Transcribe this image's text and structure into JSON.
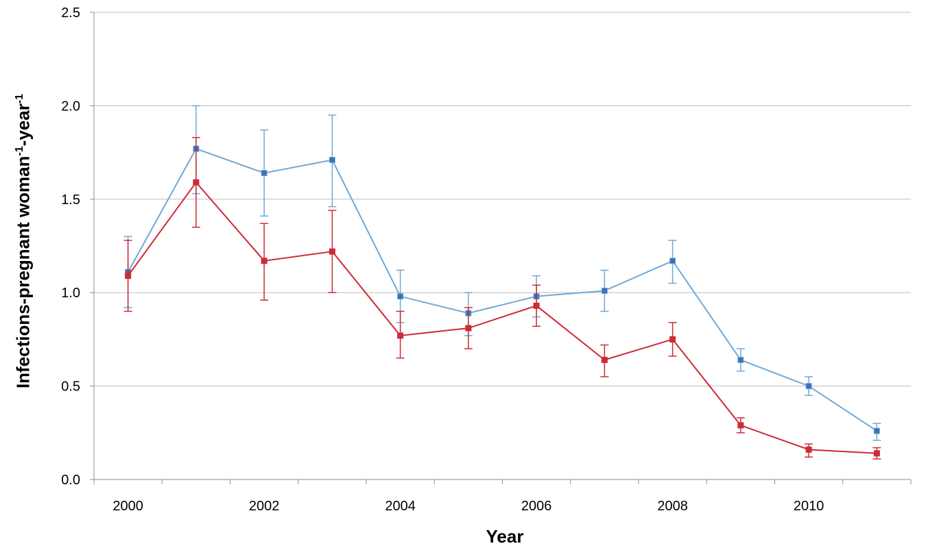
{
  "chart_data": {
    "type": "line",
    "xlabel": "Year",
    "ylabel_parts": {
      "base": "Infections-pregnant woman",
      "sup1": "-1",
      "mid": "-year",
      "sup2": "-1"
    },
    "x": [
      2000,
      2001,
      2002,
      2003,
      2004,
      2005,
      2006,
      2007,
      2008,
      2009,
      2010,
      2011
    ],
    "x_tick_labels": [
      "2000",
      "2002",
      "2004",
      "2006",
      "2008",
      "2010"
    ],
    "y_tick_labels": [
      "0.0",
      "0.5",
      "1.0",
      "1.5",
      "2.0",
      "2.5"
    ],
    "ylim": [
      0,
      2.5
    ],
    "grid": "horizontal",
    "series": [
      {
        "color": "#6fa8d6",
        "marker_fill": "#3d6fb6",
        "values": [
          1.11,
          1.77,
          1.64,
          1.71,
          0.98,
          0.89,
          0.98,
          1.01,
          1.17,
          0.64,
          0.5,
          0.26
        ],
        "err_low": [
          0.92,
          1.53,
          1.41,
          1.46,
          0.84,
          0.77,
          0.87,
          0.9,
          1.05,
          0.58,
          0.45,
          0.21
        ],
        "err_high": [
          1.3,
          2.0,
          1.87,
          1.95,
          1.12,
          1.0,
          1.09,
          1.12,
          1.28,
          0.7,
          0.55,
          0.3
        ]
      },
      {
        "color": "#cc2a36",
        "marker_fill": "#cc2a36",
        "values": [
          1.09,
          1.59,
          1.17,
          1.22,
          0.77,
          0.81,
          0.93,
          0.64,
          0.75,
          0.29,
          0.16,
          0.14
        ],
        "err_low": [
          0.9,
          1.35,
          0.96,
          1.0,
          0.65,
          0.7,
          0.82,
          0.55,
          0.66,
          0.25,
          0.12,
          0.11
        ],
        "err_high": [
          1.28,
          1.83,
          1.37,
          1.44,
          0.9,
          0.92,
          1.04,
          0.72,
          0.84,
          0.33,
          0.19,
          0.17
        ]
      }
    ]
  }
}
